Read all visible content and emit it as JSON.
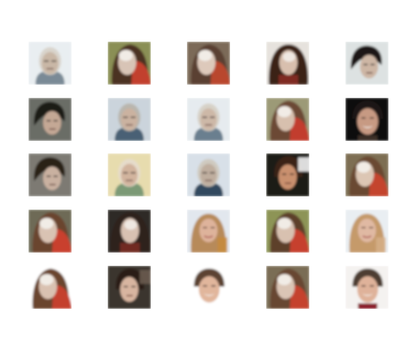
{
  "grid": {
    "rows": 5,
    "cols": 5,
    "background": "#ffffff",
    "samples": [
      {
        "bg": "#e9eef1",
        "skin": "#c9b7a6",
        "hair": "#d9d4cc",
        "accent": "#7a8a96",
        "style": "grey-bald"
      },
      {
        "bg": "#8a8f55",
        "skin": "#d8c4b6",
        "hair": "#4b3124",
        "accent": "#c2402e",
        "style": "red-side"
      },
      {
        "bg": "#7b6b58",
        "skin": "#ddc9bb",
        "hair": "#5a4030",
        "accent": "#b9462f",
        "style": "red-side"
      },
      {
        "bg": "#e6e2dd",
        "skin": "#d8bfae",
        "hair": "#3a2419",
        "accent": "#9d2c24",
        "style": "long-dark"
      },
      {
        "bg": "#dde2e2",
        "skin": "#cdb6a4",
        "hair": "#1d1612",
        "accent": "#6a5a52",
        "style": "dark-side"
      },
      {
        "bg": "#6a6d66",
        "skin": "#c4a895",
        "hair": "#1f1a17",
        "accent": "#4a4f55",
        "style": "dark-side"
      },
      {
        "bg": "#cbd4dc",
        "skin": "#cbb2a0",
        "hair": "#b9b6ae",
        "accent": "#4a6075",
        "style": "grey-bald"
      },
      {
        "bg": "#e6ebef",
        "skin": "#cdb8a7",
        "hair": "#d7d2c8",
        "accent": "#6b7f8f",
        "style": "grey-bald"
      },
      {
        "bg": "#9c9a77",
        "skin": "#d7c0ae",
        "hair": "#6c4a35",
        "accent": "#c23e2f",
        "style": "red-side"
      },
      {
        "bg": "#0d0b0a",
        "skin": "#c79a83",
        "hair": "#1b1512",
        "accent": "#3b2d28",
        "style": "dark-smile"
      },
      {
        "bg": "#7d7a73",
        "skin": "#c9b1a0",
        "hair": "#2a2019",
        "accent": "#8a7a70",
        "style": "dark-side"
      },
      {
        "bg": "#e7dcae",
        "skin": "#d2b49e",
        "hair": "#e6dccb",
        "accent": "#7b9a76",
        "style": "grey-bald"
      },
      {
        "bg": "#d8e0e8",
        "skin": "#bfae9f",
        "hair": "#cfcac0",
        "accent": "#33485e",
        "style": "grey-bald"
      },
      {
        "bg": "#1b1a18",
        "skin": "#c9906e",
        "hair": "#3b2418",
        "accent": "#f2f2f2",
        "style": "young-dark"
      },
      {
        "bg": "#7d6e52",
        "skin": "#dcc6b4",
        "hair": "#6b4a31",
        "accent": "#c4452f",
        "style": "red-side"
      },
      {
        "bg": "#6e6a56",
        "skin": "#d9c3b3",
        "hair": "#6a452e",
        "accent": "#c9402f",
        "style": "red-side"
      },
      {
        "bg": "#2d2926",
        "skin": "#d8c1b2",
        "hair": "#2e211a",
        "accent": "#8f2f28",
        "style": "long-dark"
      },
      {
        "bg": "#e2e7ee",
        "skin": "#deb39b",
        "hair": "#b78a5a",
        "accent": "#c78a3a",
        "style": "blonde"
      },
      {
        "bg": "#8d9456",
        "skin": "#d8c1b0",
        "hair": "#5d3f2a",
        "accent": "#c63f2e",
        "style": "red-side"
      },
      {
        "bg": "#e9eef2",
        "skin": "#e0b9a3",
        "hair": "#c59a6b",
        "accent": "#d6b08a",
        "style": "blonde"
      },
      {
        "bg": "#ffffff",
        "skin": "#d9c1b1",
        "hair": "#6a452f",
        "accent": "#c4402d",
        "style": "red-side"
      },
      {
        "bg": "#3a342d",
        "skin": "#d8b5a0",
        "hair": "#2b1f18",
        "accent": "#6a5a50",
        "style": "young-dark"
      },
      {
        "bg": "#ffffff",
        "skin": "#e1b69c",
        "hair": "#5b4333",
        "accent": "#ffffff",
        "style": "dark-smile"
      },
      {
        "bg": "#7a6d55",
        "skin": "#dac5b5",
        "hair": "#684732",
        "accent": "#c5422f",
        "style": "red-side"
      },
      {
        "bg": "#f4f2f0",
        "skin": "#dfb29a",
        "hair": "#4e3e33",
        "accent": "#8a1f2a",
        "style": "dark-smile"
      }
    ]
  }
}
